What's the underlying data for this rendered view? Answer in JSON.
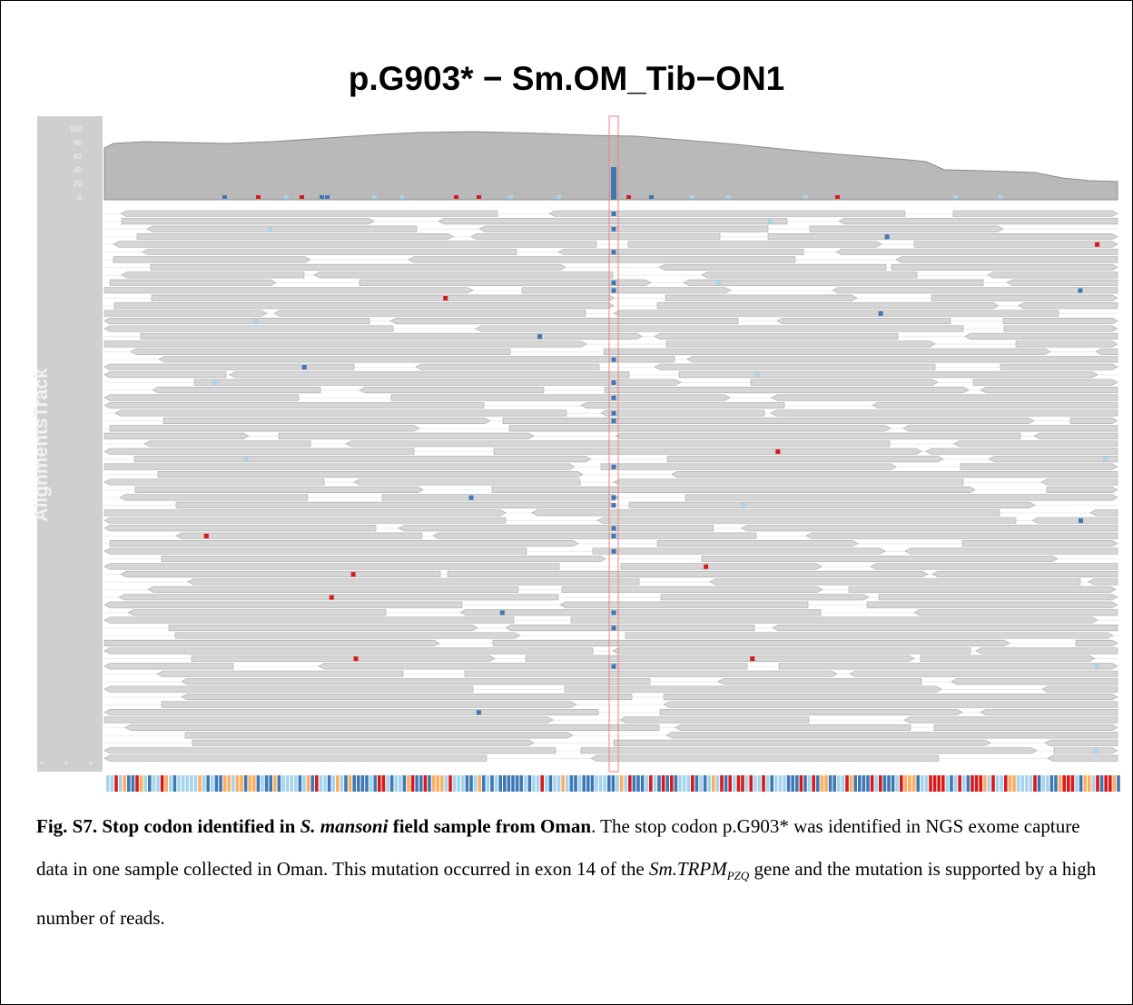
{
  "figure": {
    "title": "p.G903* − Sm.OM_Tib−ON1",
    "track_label": "AlignmentsTrack",
    "coverage_axis_ticks": [
      "100",
      "80",
      "60",
      "40",
      "20",
      "0"
    ],
    "collapse_arrows": "˅ ˅ ˅",
    "colors": {
      "read_fill": "#d6d6d6",
      "read_stroke": "#a9a9a9",
      "coverage_fill": "#b9b9b9",
      "coverage_stroke": "#8a8a8a",
      "mismatch_dark_blue": "#3d78b5",
      "mismatch_light_blue": "#a6d4ec",
      "mismatch_red": "#d7191c",
      "mismatch_orange": "#fdae61",
      "highlight_border": "#f08080"
    }
  },
  "caption": {
    "label": "Fig. S7.",
    "heading_part1": "Stop codon identified in",
    "heading_species": "S. mansoni",
    "heading_part2": "field sample from Oman",
    "sentence1": ". The stop codon p.G903* was identified in NGS exome capture data in one sample collected in Oman. This mutation occurred in exon 14 of the",
    "gene_name": "Sm.TRPM",
    "gene_subscript": "PZQ",
    "sentence2": "gene and the mutation is supported by a high number of reads."
  }
}
